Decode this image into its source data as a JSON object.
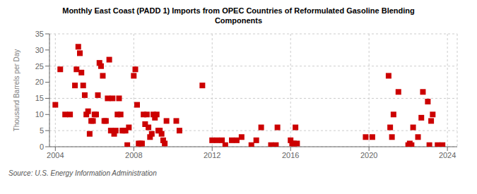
{
  "chart_data": {
    "type": "scatter",
    "title": "Monthly East Coast (PADD 1) Imports from OPEC Countries of Reformulated Gasoline Blending\nComponents",
    "ylabel": "Thousand Barrels per Day",
    "annotations": [
      "Source: U.S. Energy Information Administration"
    ],
    "color": "#cc0000",
    "marker": "square",
    "grid": true,
    "xlim": [
      2003.7,
      2024.5
    ],
    "xticks": [
      2004,
      2008,
      2012,
      2016,
      2020,
      2024
    ],
    "ylim": [
      0,
      35
    ],
    "yticks": [
      0,
      5,
      10,
      15,
      20,
      25,
      30,
      35
    ],
    "x": [
      2004.0,
      2004.25,
      2004.5,
      2004.75,
      2005.0,
      2005.08,
      2005.17,
      2005.25,
      2005.33,
      2005.42,
      2005.5,
      2005.58,
      2005.67,
      2005.75,
      2005.83,
      2005.92,
      2006.0,
      2006.08,
      2006.17,
      2006.25,
      2006.33,
      2006.42,
      2006.5,
      2006.58,
      2006.67,
      2006.75,
      2006.83,
      2006.92,
      2007.0,
      2007.08,
      2007.17,
      2007.25,
      2007.33,
      2007.42,
      2007.5,
      2007.58,
      2007.67,
      2007.75,
      2008.0,
      2008.08,
      2008.17,
      2008.25,
      2008.33,
      2008.42,
      2008.5,
      2008.58,
      2008.67,
      2008.75,
      2008.83,
      2008.92,
      2009.0,
      2009.08,
      2009.17,
      2009.25,
      2009.33,
      2009.42,
      2009.5,
      2009.58,
      2009.67,
      2010.17,
      2010.33,
      2011.5,
      2012.0,
      2012.25,
      2012.5,
      2012.67,
      2013.0,
      2013.25,
      2013.5,
      2014.0,
      2014.25,
      2014.5,
      2015.0,
      2015.25,
      2015.33,
      2016.0,
      2016.08,
      2016.17,
      2016.25,
      2016.33,
      2019.83,
      2020.17,
      2021.0,
      2021.08,
      2021.17,
      2021.25,
      2021.5,
      2022.0,
      2022.08,
      2022.17,
      2022.25,
      2022.5,
      2022.67,
      2022.75,
      2023.0,
      2023.08,
      2023.17,
      2023.25,
      2023.5,
      2023.75
    ],
    "values": [
      13.0,
      24.0,
      10.0,
      10.0,
      19.0,
      24.0,
      31.0,
      29.0,
      23.0,
      19.0,
      16.0,
      10.0,
      11.0,
      4.0,
      8.0,
      8.0,
      10.0,
      10.0,
      16.0,
      26.0,
      25.0,
      22.0,
      8.0,
      8.0,
      15.0,
      27.0,
      5.0,
      15.0,
      4.0,
      5.0,
      10.0,
      15.0,
      10.0,
      5.0,
      5.0,
      5.0,
      0.5,
      6.0,
      22.0,
      24.0,
      13.0,
      1.0,
      1.0,
      1.0,
      10.0,
      7.0,
      10.0,
      6.0,
      3.0,
      4.0,
      10.0,
      9.0,
      10.0,
      5.0,
      5.0,
      4.0,
      2.0,
      1.0,
      8.0,
      8.0,
      5.0,
      19.0,
      2.0,
      2.0,
      2.0,
      0.5,
      2.0,
      2.0,
      3.0,
      0.5,
      2.0,
      6.0,
      0.5,
      0.5,
      6.0,
      2.0,
      1.0,
      1.0,
      6.0,
      1.0,
      3.0,
      3.0,
      22.0,
      6.0,
      3.0,
      10.0,
      17.0,
      0.5,
      1.0,
      0.5,
      6.0,
      3.0,
      9.0,
      17.0,
      14.0,
      0.5,
      8.0,
      10.0,
      0.5,
      0.5
    ]
  }
}
